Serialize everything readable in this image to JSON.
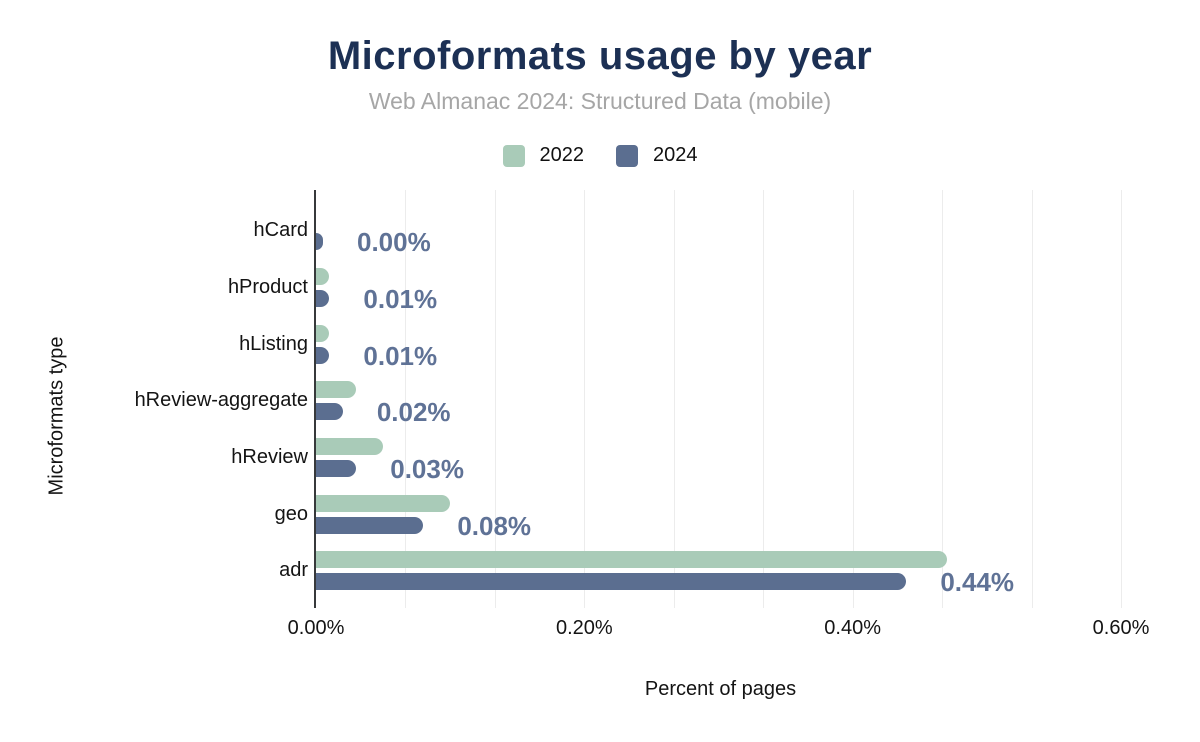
{
  "header": {
    "title": "Microformats usage by year",
    "subtitle": "Web Almanac 2024: Structured Data (mobile)"
  },
  "legend": [
    {
      "label": "2022",
      "color": "#a9cbb8"
    },
    {
      "label": "2024",
      "color": "#5b6e90"
    }
  ],
  "chart_data": {
    "type": "bar",
    "orientation": "horizontal",
    "title": "Microformats usage by year",
    "subtitle": "Web Almanac 2024: Structured Data (mobile)",
    "categories": [
      "hCard",
      "hProduct",
      "hListing",
      "hReview-aggregate",
      "hReview",
      "geo",
      "adr"
    ],
    "series": [
      {
        "name": "2022",
        "color": "#a9cbb8",
        "values": [
          null,
          0.01,
          0.01,
          0.03,
          0.05,
          0.1,
          0.47
        ]
      },
      {
        "name": "2024",
        "color": "#5b6e90",
        "values": [
          0.0,
          0.01,
          0.01,
          0.02,
          0.03,
          0.08,
          0.44
        ],
        "data_labels": [
          "0.00%",
          "0.01%",
          "0.01%",
          "0.02%",
          "0.03%",
          "0.08%",
          "0.44%"
        ]
      }
    ],
    "xlabel": "Percent of pages",
    "ylabel": "Microformats type",
    "xlim": [
      0,
      0.6
    ],
    "x_ticks": [
      "0.00%",
      "0.20%",
      "0.40%",
      "0.60%"
    ],
    "x_tick_values": [
      0,
      0.2,
      0.4,
      0.6
    ],
    "grid": "vertical gridlines, 3 per 0.20% interval, light gray",
    "legend_position": "top center",
    "data_label_color": "#5f7296",
    "axis_line_color": "#37393b"
  }
}
